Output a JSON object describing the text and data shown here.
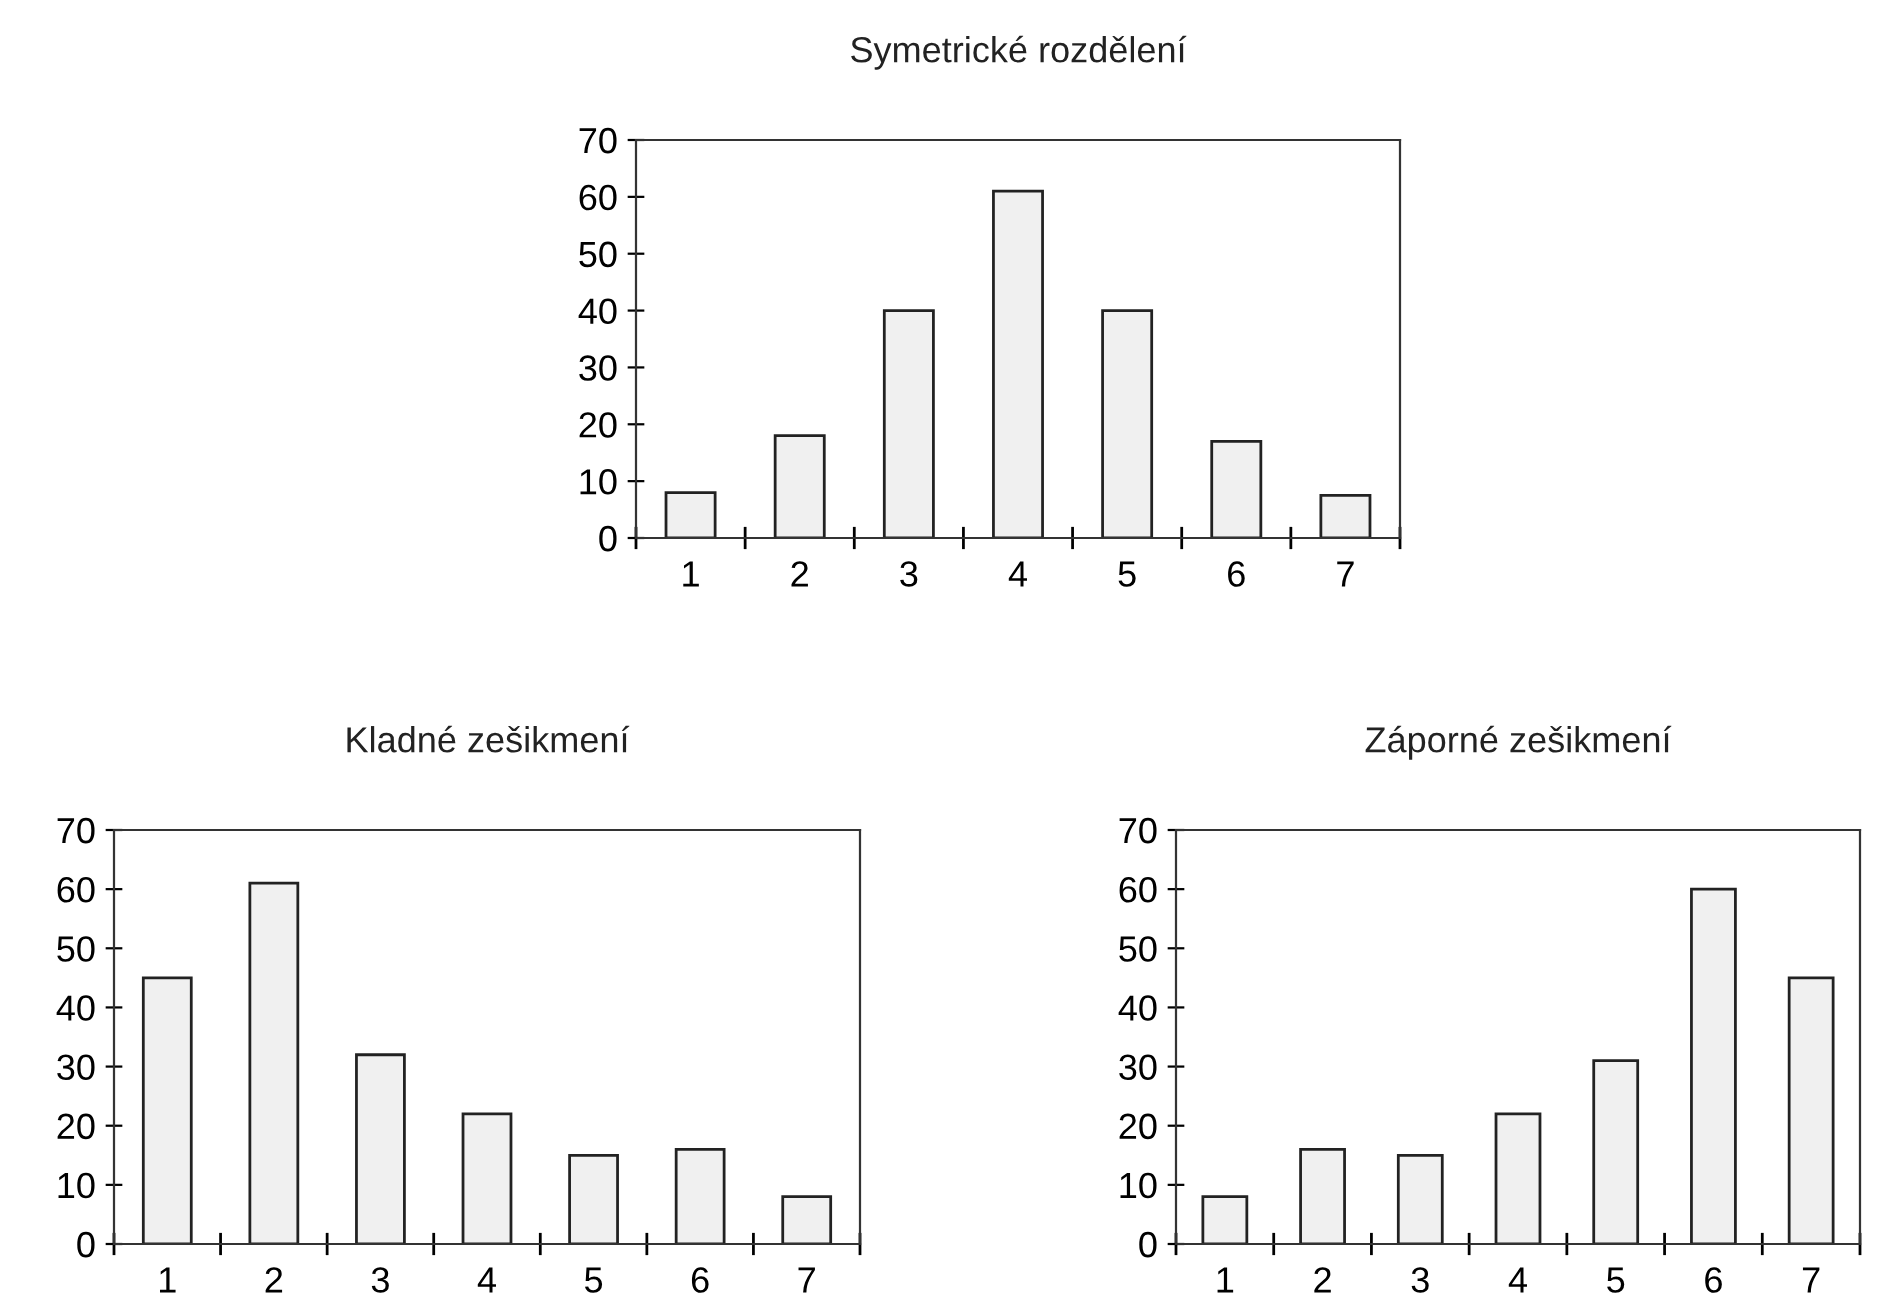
{
  "chart_data": [
    {
      "type": "bar",
      "title": "Symetrické rozdělení",
      "categories": [
        "1",
        "2",
        "3",
        "4",
        "5",
        "6",
        "7"
      ],
      "values": [
        8,
        18,
        40,
        61,
        40,
        17,
        7.5
      ],
      "color": "#f0f0f0",
      "ylim": [
        0,
        70
      ],
      "yticks": [
        0,
        10,
        20,
        30,
        40,
        50,
        60,
        70
      ],
      "grid": false
    },
    {
      "type": "bar",
      "title": "Kladné zešikmení",
      "categories": [
        "1",
        "2",
        "3",
        "4",
        "5",
        "6",
        "7"
      ],
      "values": [
        45,
        61,
        32,
        22,
        15,
        16,
        8
      ],
      "color": "#f0f0f0",
      "ylim": [
        0,
        70
      ],
      "yticks": [
        0,
        10,
        20,
        30,
        40,
        50,
        60,
        70
      ],
      "grid": false
    },
    {
      "type": "bar",
      "title": "Záporné zešikmení",
      "categories": [
        "1",
        "2",
        "3",
        "4",
        "5",
        "6",
        "7"
      ],
      "values": [
        8,
        16,
        15,
        22,
        31,
        60,
        45
      ],
      "color": "#f0f0f0",
      "ylim": [
        0,
        70
      ],
      "yticks": [
        0,
        10,
        20,
        30,
        40,
        50,
        60,
        70
      ],
      "grid": false
    }
  ]
}
